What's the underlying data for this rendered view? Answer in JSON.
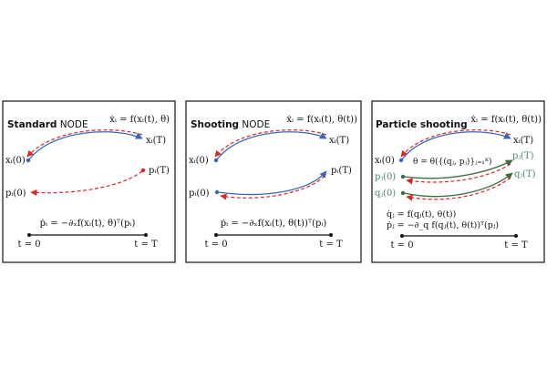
{
  "panels": [
    {
      "title_bold": "Standard",
      "title_rest": " NODE",
      "forward_eq": "ẋᵢ = f(xᵢ(t), θ)",
      "x0": "xᵢ(0)",
      "xT": "xᵢ(T)",
      "p0": "pᵢ(0)",
      "pT": "pᵢ(T)",
      "adjoint_eq": "ṗᵢ = −∂ₓf(xᵢ(t), θ)ᵀ(pᵢ)",
      "t0": "t = 0",
      "tT": "t = T"
    },
    {
      "title_bold": "Shooting",
      "title_rest": " NODE",
      "forward_eq": "ẋᵢ = f(xᵢ(t), θ(t))",
      "x0": "xᵢ(0)",
      "xT": "xᵢ(T)",
      "p0": "pᵢ(0)",
      "pT": "pᵢ(T)",
      "adjoint_eq": "ṗᵢ = −∂ₓf(xᵢ(t), θ(t))ᵀ(pᵢ)",
      "t0": "t = 0",
      "tT": "t = T"
    },
    {
      "title_bold": "Particle shooting",
      "forward_eq": "ẋᵢ = f(xᵢ(t), θ(t))",
      "x0": "xᵢ(0)",
      "xT": "xᵢ(T)",
      "theta_eq": "θ = θ({(qⱼ, pⱼ)}ⱼ₌₁ᴷ)",
      "pj0": "pⱼ(0)",
      "qj0": "qⱼ(0)",
      "pjT": "pⱼ(T)",
      "qjT": "qⱼ(T)",
      "qdot_eq": "q̇ⱼ = f(qⱼ(t), θ(t))",
      "pdot_eq": "ṗⱼ = −∂_q f(qⱼ(t), θ(t))ᵀ(pⱼ)",
      "t0": "t = 0",
      "tT": "t = T"
    }
  ],
  "colors": {
    "forward": "#3a66b8",
    "backward": "#d42a2a",
    "particle_forward": "#3d6b3d",
    "particle_label": "#4a8a6a",
    "frame": "#222222"
  }
}
